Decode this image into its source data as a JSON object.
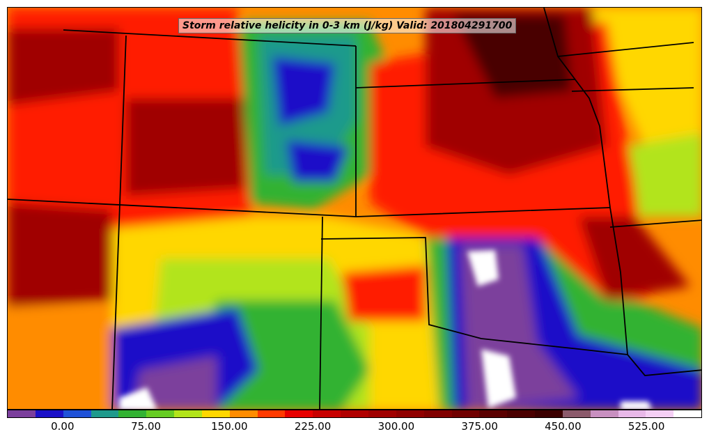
{
  "title": "Storm relative helicity in 0-3 km (J/kg) Valid: 201804291700",
  "colorbar": {
    "colors": [
      "#7b3f9c",
      "#1a10c8",
      "#1f52d8",
      "#1f9a8c",
      "#33b233",
      "#66cc22",
      "#b2e41a",
      "#ffd700",
      "#ff8c00",
      "#ff3a00",
      "#e80000",
      "#c80000",
      "#b00000",
      "#a00000",
      "#900000",
      "#800000",
      "#700000",
      "#5a0000",
      "#4a0000",
      "#3b0000",
      "#8b5a6b",
      "#c890c0",
      "#e8b8e8",
      "#f4cff4",
      "#ffffff"
    ],
    "ticks": [
      {
        "label": "0.00",
        "value": 0
      },
      {
        "label": "75.00",
        "value": 75
      },
      {
        "label": "150.00",
        "value": 150
      },
      {
        "label": "225.00",
        "value": 225
      },
      {
        "label": "300.00",
        "value": 300
      },
      {
        "label": "375.00",
        "value": 375
      },
      {
        "label": "450.00",
        "value": 450
      },
      {
        "label": "525.00",
        "value": 525
      }
    ],
    "range": [
      -50,
      575
    ]
  },
  "map": {
    "field_colors": {
      "very_high": "#4a0000",
      "high": "#a00000",
      "red": "#ff1a00",
      "orange": "#ff8c00",
      "yellow": "#ffd700",
      "lime": "#b2e41a",
      "green": "#33b233",
      "teal": "#1f9a8c",
      "blue": "#1a10c8",
      "purple": "#7b3f9c",
      "white": "#ffffff"
    },
    "boundary_color": "#000000"
  }
}
